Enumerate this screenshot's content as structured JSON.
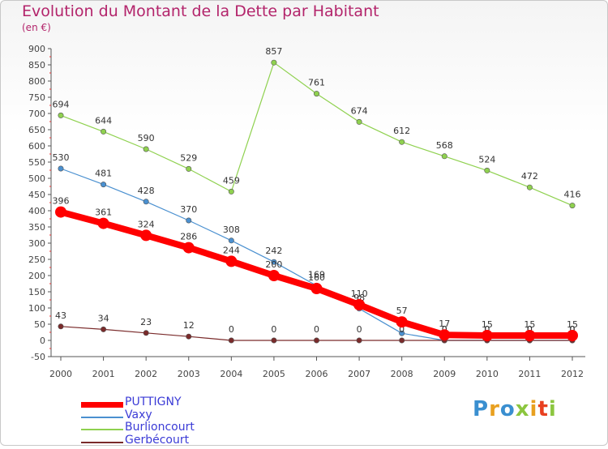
{
  "chart_data": {
    "type": "line",
    "title": "Evolution du Montant de la Dette par Habitant",
    "unit_label": "(en €)",
    "ylim": [
      -50,
      900
    ],
    "yticks": [
      -50,
      0,
      50,
      100,
      150,
      200,
      250,
      300,
      350,
      400,
      450,
      500,
      550,
      600,
      650,
      700,
      750,
      800,
      850,
      900
    ],
    "categories": [
      "2000",
      "2001",
      "2002",
      "2003",
      "2004",
      "2005",
      "2006",
      "2007",
      "2008",
      "2009",
      "2010",
      "2011",
      "2012"
    ],
    "series": [
      {
        "name": "Burlioncourt",
        "color": "#8fd14f",
        "values": [
          694,
          644,
          590,
          529,
          459,
          857,
          761,
          674,
          612,
          568,
          524,
          472,
          416
        ]
      },
      {
        "name": "Vaxy",
        "color": "#4a90d0",
        "values": [
          530,
          481,
          428,
          370,
          308,
          242,
          169,
          98,
          22,
          0,
          0,
          0,
          0
        ]
      },
      {
        "name": "Gerbécourt",
        "color": "#7a2b2b",
        "values": [
          43,
          34,
          23,
          12,
          0,
          0,
          0,
          0,
          0,
          0,
          0,
          0,
          0
        ]
      },
      {
        "name": "PUTTIGNY",
        "color": "#ff0000",
        "values": [
          396,
          361,
          324,
          286,
          244,
          200,
          160,
          110,
          57,
          17,
          15,
          15,
          15
        ]
      }
    ],
    "legend_order": [
      "PUTTIGNY",
      "Vaxy",
      "Burlioncourt",
      "Gerbécourt"
    ],
    "legend_text_color": "#3b3bd6",
    "grid": false
  },
  "logo": {
    "letters": [
      "P",
      "r",
      "o",
      "x",
      "i",
      "t",
      "i"
    ],
    "colors": [
      "#3a8fd0",
      "#e8a020",
      "#3a8fd0",
      "#8cc63f",
      "#e8a020",
      "#e84020",
      "#8cc63f"
    ]
  }
}
